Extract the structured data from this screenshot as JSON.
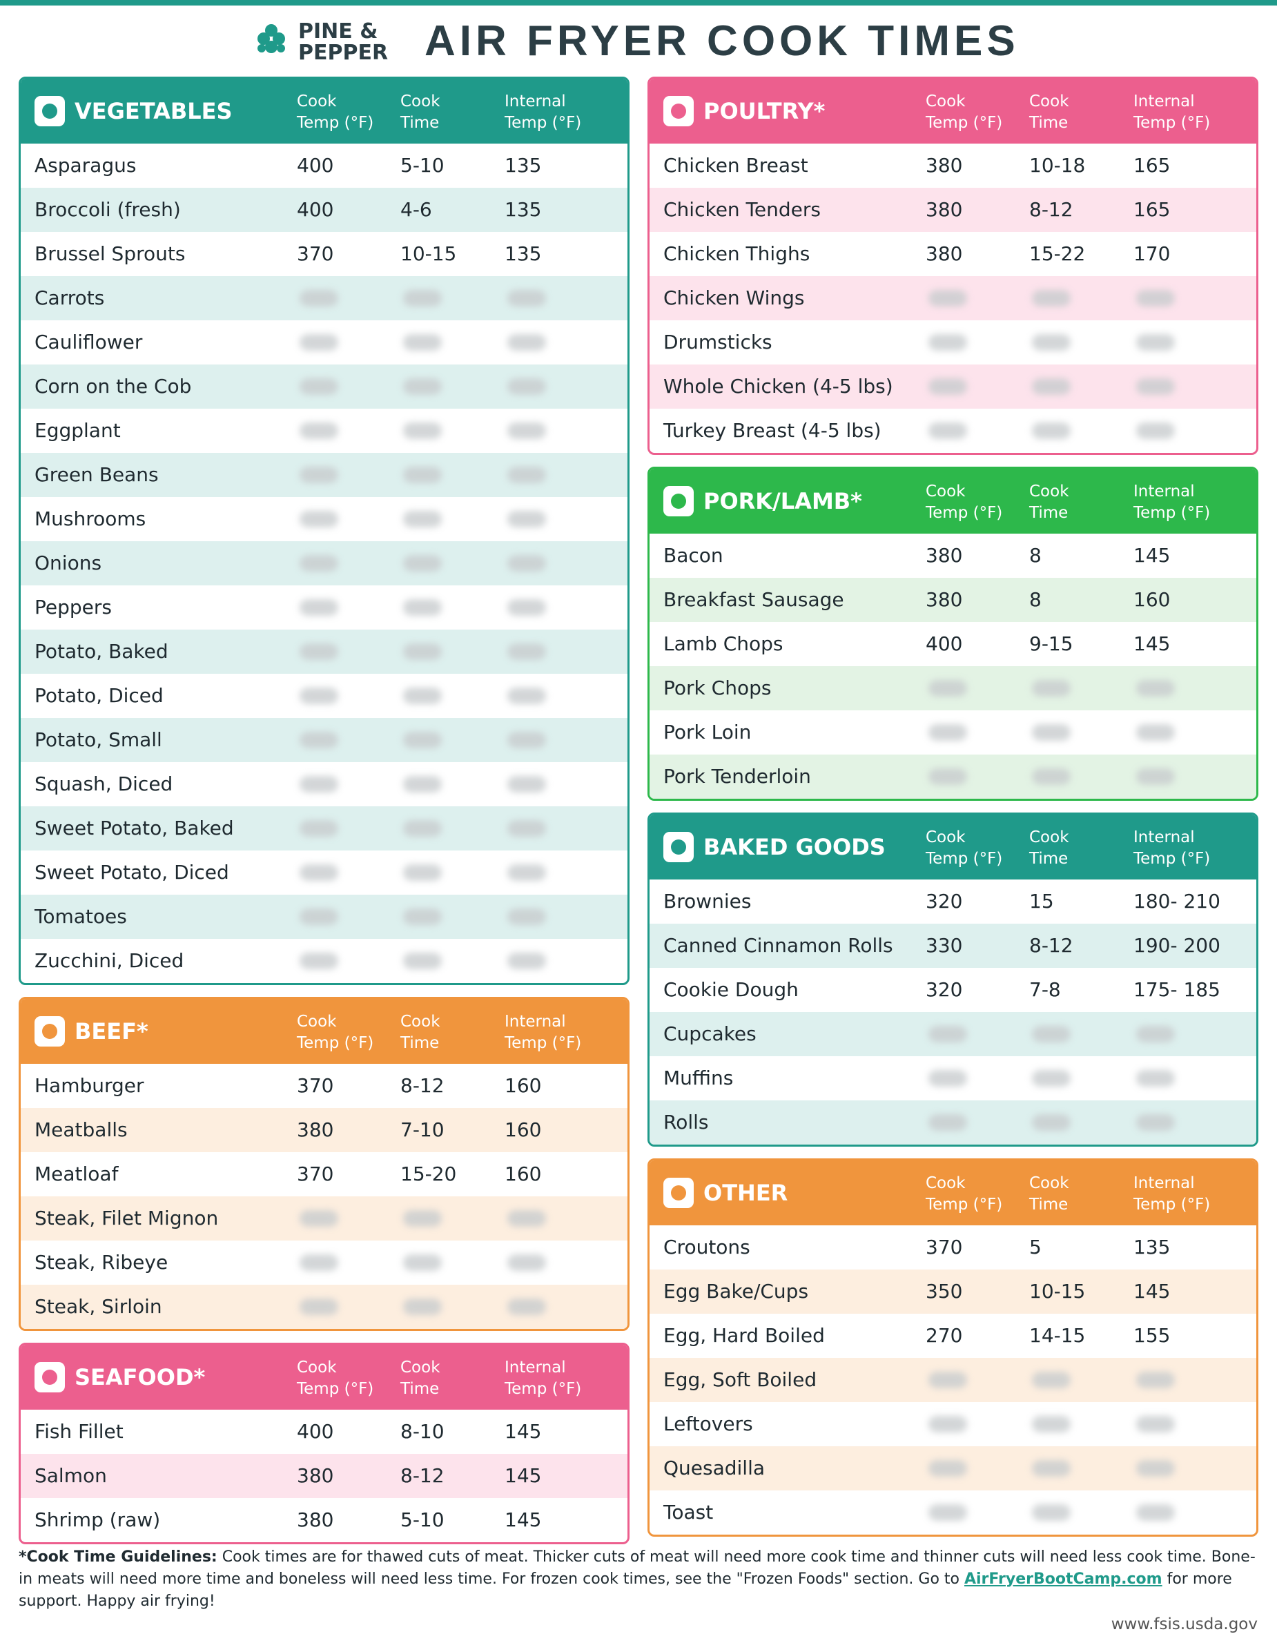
{
  "header": {
    "brand_line1": "PINE &",
    "brand_line2": "PEPPER",
    "title": "AIR FRYER COOK TIMES"
  },
  "sections": [
    {
      "title": "VEGETABLES",
      "color": "#1f9a8a",
      "tint": "#ddf0ee",
      "column": "left",
      "columns": [
        [
          "Cook",
          "Temp (°F)"
        ],
        [
          "Cook",
          "Time"
        ],
        [
          "Internal",
          "Temp (°F)"
        ]
      ],
      "rows": [
        [
          "Asparagus",
          "400",
          "5-10",
          "135"
        ],
        [
          "Broccoli (fresh)",
          "400",
          "4-6",
          "135"
        ],
        [
          "Brussel Sprouts",
          "370",
          "10-15",
          "135"
        ],
        [
          "Carrots"
        ],
        [
          "Cauliflower"
        ],
        [
          "Corn on the Cob"
        ],
        [
          "Eggplant"
        ],
        [
          "Green Beans"
        ],
        [
          "Mushrooms"
        ],
        [
          "Onions"
        ],
        [
          "Peppers"
        ],
        [
          "Potato, Baked"
        ],
        [
          "Potato, Diced"
        ],
        [
          "Potato, Small"
        ],
        [
          "Squash, Diced"
        ],
        [
          "Sweet Potato, Baked"
        ],
        [
          "Sweet Potato, Diced"
        ],
        [
          "Tomatoes"
        ],
        [
          "Zucchini, Diced"
        ]
      ]
    },
    {
      "title": "BEEF*",
      "color": "#f0953d",
      "tint": "#fdeedf",
      "column": "left",
      "columns": [
        [
          "Cook",
          "Temp (°F)"
        ],
        [
          "Cook",
          "Time"
        ],
        [
          "Internal",
          "Temp (°F)"
        ]
      ],
      "rows": [
        [
          "Hamburger",
          "370",
          "8-12",
          "160"
        ],
        [
          "Meatballs",
          "380",
          "7-10",
          "160"
        ],
        [
          "Meatloaf",
          "370",
          "15-20",
          "160"
        ],
        [
          "Steak, Filet Mignon"
        ],
        [
          "Steak, Ribeye"
        ],
        [
          "Steak, Sirloin"
        ]
      ]
    },
    {
      "title": "SEAFOOD*",
      "color": "#ec5f8e",
      "tint": "#fde3ec",
      "column": "left",
      "columns": [
        [
          "Cook",
          "Temp (°F)"
        ],
        [
          "Cook",
          "Time"
        ],
        [
          "Internal",
          "Temp (°F)"
        ]
      ],
      "rows": [
        [
          "Fish Fillet",
          "400",
          "8-10",
          "145"
        ],
        [
          "Salmon",
          "380",
          "8-12",
          "145"
        ],
        [
          "Shrimp (raw)",
          "380",
          "5-10",
          "145"
        ]
      ]
    },
    {
      "title": "POULTRY*",
      "color": "#ec5f8e",
      "tint": "#fde3ec",
      "column": "right",
      "columns": [
        [
          "Cook",
          "Temp (°F)"
        ],
        [
          "Cook",
          "Time"
        ],
        [
          "Internal",
          "Temp (°F)"
        ]
      ],
      "rows": [
        [
          "Chicken Breast",
          "380",
          "10-18",
          "165"
        ],
        [
          "Chicken Tenders",
          "380",
          "8-12",
          "165"
        ],
        [
          "Chicken Thighs",
          "380",
          "15-22",
          "170"
        ],
        [
          "Chicken Wings"
        ],
        [
          "Drumsticks"
        ],
        [
          "Whole Chicken (4-5 lbs)"
        ],
        [
          "Turkey Breast (4-5 lbs)"
        ]
      ]
    },
    {
      "title": "PORK/LAMB*",
      "color": "#2db84b",
      "tint": "#e3f3e4",
      "column": "right",
      "columns": [
        [
          "Cook",
          "Temp (°F)"
        ],
        [
          "Cook",
          "Time"
        ],
        [
          "Internal",
          "Temp (°F)"
        ]
      ],
      "rows": [
        [
          "Bacon",
          "380",
          "8",
          "145"
        ],
        [
          "Breakfast Sausage",
          "380",
          "8",
          "160"
        ],
        [
          "Lamb Chops",
          "400",
          "9-15",
          "145"
        ],
        [
          "Pork Chops"
        ],
        [
          "Pork Loin"
        ],
        [
          "Pork Tenderloin"
        ]
      ]
    },
    {
      "title": "BAKED GOODS",
      "color": "#1f9a8a",
      "tint": "#ddf0ee",
      "column": "right",
      "columns": [
        [
          "Cook",
          "Temp (°F)"
        ],
        [
          "Cook",
          "Time"
        ],
        [
          "Internal",
          "Temp (°F)"
        ]
      ],
      "rows": [
        [
          "Brownies",
          "320",
          "15",
          "180- 210"
        ],
        [
          "Canned Cinnamon Rolls",
          "330",
          "8-12",
          "190- 200"
        ],
        [
          "Cookie Dough",
          "320",
          "7-8",
          "175- 185"
        ],
        [
          "Cupcakes"
        ],
        [
          "Muffins"
        ],
        [
          "Rolls"
        ]
      ]
    },
    {
      "title": "OTHER",
      "color": "#f0953d",
      "tint": "#fdeedf",
      "column": "right",
      "columns": [
        [
          "Cook",
          "Temp (°F)"
        ],
        [
          "Cook",
          "Time"
        ],
        [
          "Internal",
          "Temp (°F)"
        ]
      ],
      "rows": [
        [
          "Croutons",
          "370",
          "5",
          "135"
        ],
        [
          "Egg Bake/Cups",
          "350",
          "10-15",
          "145"
        ],
        [
          "Egg, Hard Boiled",
          "270",
          "14-15",
          "155"
        ],
        [
          "Egg, Soft Boiled"
        ],
        [
          "Leftovers"
        ],
        [
          "Quesadilla"
        ],
        [
          "Toast"
        ]
      ]
    }
  ],
  "footer": {
    "bold": "*Cook Time Guidelines:",
    "text": " Cook times are for thawed cuts of meat. Thicker cuts of meat will need more cook time and thinner cuts will need less cook time. Bone-in meats will need more time and boneless will need less time. For frozen cook times, see the \"Frozen Foods\" section. Go to ",
    "link": "AirFryerBootCamp.com",
    "text2": " for more support. Happy air frying!",
    "source": "www.fsis.usda.gov"
  }
}
